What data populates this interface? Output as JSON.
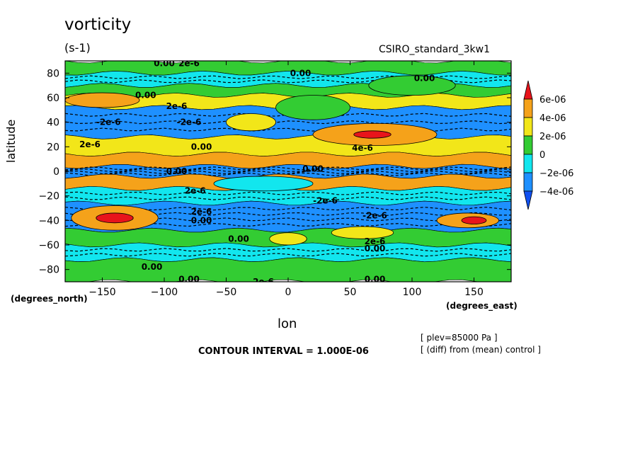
{
  "chart_data": {
    "type": "heatmap",
    "title": "vorticity",
    "units": "(s-1)",
    "model_label": "CSIRO_standard_3kw1",
    "xlabel": "lon",
    "xunits": "(degrees_east)",
    "ylabel": "latitude",
    "yunits": "(degrees_north)",
    "xlim": [
      -180,
      180
    ],
    "ylim": [
      -90,
      90
    ],
    "xticks": [
      -150,
      -100,
      -50,
      0,
      50,
      100,
      150
    ],
    "yticks": [
      80,
      60,
      40,
      20,
      0,
      -20,
      -40,
      -60,
      -80
    ],
    "colorbar": {
      "levels": [
        "6e-06",
        "4e-06",
        "2e-06",
        "0",
        "-2e-06",
        "-4e-06"
      ],
      "colors": [
        "#e8141b",
        "#f5a21a",
        "#f2e619",
        "#33cc33",
        "#12e6ee",
        "#1e90ff",
        "#1050f0"
      ]
    },
    "contour_labels": [
      "0.00",
      "2e-6",
      "4e-6",
      "-2e-6",
      "-4e-6"
    ],
    "bands": [
      {
        "lat_from": 90,
        "lat_to": 80,
        "value": 0
      },
      {
        "lat_from": 80,
        "lat_to": 70,
        "value": -1e-06
      },
      {
        "lat_from": 70,
        "lat_to": 62,
        "value": 1e-06
      },
      {
        "lat_from": 62,
        "lat_to": 52,
        "value": 3e-06
      },
      {
        "lat_from": 52,
        "lat_to": 28,
        "value": -3e-06
      },
      {
        "lat_from": 28,
        "lat_to": 14,
        "value": 3e-06
      },
      {
        "lat_from": 14,
        "lat_to": 4,
        "value": 5e-06
      },
      {
        "lat_from": 4,
        "lat_to": -4,
        "value": -4e-06
      },
      {
        "lat_from": -4,
        "lat_to": -14,
        "value": 5e-06
      },
      {
        "lat_from": -14,
        "lat_to": -26,
        "value": -2e-06
      },
      {
        "lat_from": -26,
        "lat_to": -48,
        "value": -4e-06
      },
      {
        "lat_from": -48,
        "lat_to": -60,
        "value": 1e-06
      },
      {
        "lat_from": -60,
        "lat_to": -72,
        "value": -1e-06
      },
      {
        "lat_from": -72,
        "lat_to": -90,
        "value": 0
      }
    ],
    "blobs": [
      {
        "lon": -140,
        "lat": -38,
        "rlon": 35,
        "rlat": 10,
        "value": 5e-06
      },
      {
        "lon": -140,
        "lat": -38,
        "rlon": 15,
        "rlat": 4,
        "value": 7e-06
      },
      {
        "lon": 70,
        "lat": 30,
        "rlon": 50,
        "rlat": 9,
        "value": 4e-06
      },
      {
        "lon": 68,
        "lat": 30,
        "rlon": 15,
        "rlat": 3,
        "value": 7e-06
      },
      {
        "lon": 145,
        "lat": -40,
        "rlon": 25,
        "rlat": 6,
        "value": 5e-06
      },
      {
        "lon": 150,
        "lat": -40,
        "rlon": 10,
        "rlat": 3,
        "value": 7e-06
      },
      {
        "lon": -150,
        "lat": 58,
        "rlon": 30,
        "rlat": 6,
        "value": 4e-06
      },
      {
        "lon": -30,
        "lat": 40,
        "rlon": 20,
        "rlat": 7,
        "value": 2e-06
      },
      {
        "lon": 20,
        "lat": 52,
        "rlon": 30,
        "rlat": 10,
        "value": 0
      },
      {
        "lon": -20,
        "lat": -10,
        "rlon": 40,
        "rlat": 6,
        "value": -1e-06
      },
      {
        "lon": 100,
        "lat": 70,
        "rlon": 35,
        "rlat": 8,
        "value": 1e-06
      },
      {
        "lon": 0,
        "lat": -55,
        "rlon": 15,
        "rlat": 5,
        "value": 3e-06
      },
      {
        "lon": 60,
        "lat": -50,
        "rlon": 25,
        "rlat": 5,
        "value": 3e-06
      }
    ],
    "label_positions": [
      {
        "text": "0.00",
        "lon": -100,
        "lat": 88
      },
      {
        "text": "2e-6",
        "lon": -80,
        "lat": 88
      },
      {
        "text": "0.00",
        "lon": 10,
        "lat": 80
      },
      {
        "text": "0.00",
        "lon": 110,
        "lat": 76
      },
      {
        "text": "0.00",
        "lon": -115,
        "lat": 62
      },
      {
        "text": "2e-6",
        "lon": -90,
        "lat": 53
      },
      {
        "text": "-2e-6",
        "lon": -145,
        "lat": 40
      },
      {
        "text": "-2e-6",
        "lon": -80,
        "lat": 40
      },
      {
        "text": "2e-6",
        "lon": -160,
        "lat": 22
      },
      {
        "text": "0.00",
        "lon": -70,
        "lat": 20
      },
      {
        "text": "4e-6",
        "lon": 60,
        "lat": 19
      },
      {
        "text": "0.00",
        "lon": -90,
        "lat": 0
      },
      {
        "text": "0.00",
        "lon": 20,
        "lat": 2
      },
      {
        "text": "2e-6",
        "lon": -75,
        "lat": -16
      },
      {
        "text": "-2e-6",
        "lon": 30,
        "lat": -24
      },
      {
        "text": "2e-6",
        "lon": -70,
        "lat": -33
      },
      {
        "text": "0.00",
        "lon": -70,
        "lat": -40
      },
      {
        "text": "-2e-6",
        "lon": 70,
        "lat": -36
      },
      {
        "text": "0.00",
        "lon": -40,
        "lat": -55
      },
      {
        "text": "2e-6",
        "lon": 70,
        "lat": -57
      },
      {
        "text": "0.00",
        "lon": 70,
        "lat": -63
      },
      {
        "text": "0.00",
        "lon": -110,
        "lat": -78
      },
      {
        "text": "0.00",
        "lon": -80,
        "lat": -88
      },
      {
        "text": "2e-6",
        "lon": -20,
        "lat": -90
      },
      {
        "text": "0.00",
        "lon": 70,
        "lat": -88
      }
    ]
  },
  "contour_interval": "CONTOUR INTERVAL = 1.000E-06",
  "info": {
    "plev": "[ plev=85000 Pa ]",
    "diff": "[ (diff) from (mean) control ]"
  }
}
